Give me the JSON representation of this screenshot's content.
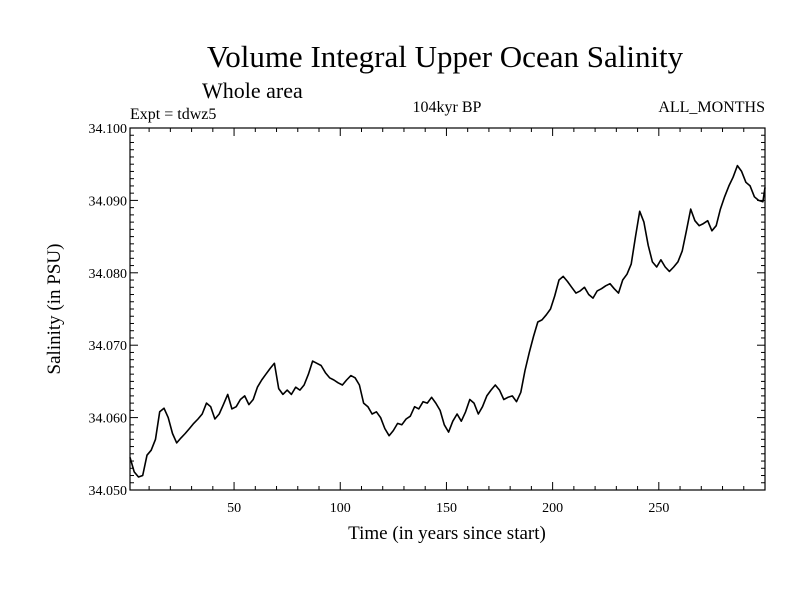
{
  "chart_data": {
    "type": "line",
    "title": "Volume Integral Upper Ocean Salinity",
    "subtitle": "Whole area",
    "header_left": "Expt = tdwz5",
    "header_center": "104kyr BP",
    "header_right": "ALL_MONTHS",
    "xlabel": "Time (in years since start)",
    "ylabel": "Salinity (in PSU)",
    "xlim": [
      1,
      300
    ],
    "ylim": [
      34.05,
      34.1
    ],
    "xticks": [
      50,
      100,
      150,
      200,
      250
    ],
    "xtick_labels": [
      "50",
      "100",
      "150",
      "200",
      "250"
    ],
    "yticks": [
      34.05,
      34.06,
      34.07,
      34.08,
      34.09,
      34.1
    ],
    "ytick_labels": [
      "34.050",
      "34.060",
      "34.070",
      "34.080",
      "34.090",
      "34.100"
    ],
    "grid": false,
    "series": [
      {
        "color": "#000000",
        "x": [
          1,
          3,
          5,
          7,
          9,
          11,
          13,
          15,
          17,
          19,
          21,
          23,
          25,
          27,
          29,
          31,
          33,
          35,
          37,
          39,
          41,
          43,
          45,
          47,
          49,
          51,
          53,
          55,
          57,
          59,
          61,
          63,
          65,
          67,
          69,
          71,
          73,
          75,
          77,
          79,
          81,
          83,
          85,
          87,
          89,
          91,
          93,
          95,
          97,
          99,
          101,
          103,
          105,
          107,
          109,
          111,
          113,
          115,
          117,
          119,
          121,
          123,
          125,
          127,
          129,
          131,
          133,
          135,
          137,
          139,
          141,
          143,
          145,
          147,
          149,
          151,
          153,
          155,
          157,
          159,
          161,
          163,
          165,
          167,
          169,
          171,
          173,
          175,
          177,
          179,
          181,
          183,
          185,
          187,
          189,
          191,
          193,
          195,
          197,
          199,
          201,
          203,
          205,
          207,
          209,
          211,
          213,
          215,
          217,
          219,
          221,
          223,
          225,
          227,
          229,
          231,
          233,
          235,
          237,
          239,
          241,
          243,
          245,
          247,
          249,
          251,
          253,
          255,
          257,
          259,
          261,
          263,
          265,
          267,
          269,
          271,
          273,
          275,
          277,
          279,
          281,
          283,
          285,
          287,
          289,
          291,
          293,
          295,
          297,
          299,
          300
        ],
        "values": [
          34.0545,
          34.0525,
          34.0518,
          34.052,
          34.0548,
          34.0555,
          34.057,
          34.0608,
          34.0613,
          34.06,
          34.0578,
          34.0565,
          34.0572,
          34.0578,
          34.0585,
          34.0592,
          34.0598,
          34.0605,
          34.062,
          34.0615,
          34.0598,
          34.0605,
          34.0618,
          34.0632,
          34.0612,
          34.0615,
          34.0625,
          34.063,
          34.0618,
          34.0625,
          34.0642,
          34.0652,
          34.066,
          34.0668,
          34.0675,
          34.064,
          34.0632,
          34.0638,
          34.0632,
          34.0642,
          34.0638,
          34.0645,
          34.066,
          34.0678,
          34.0675,
          34.0672,
          34.0662,
          34.0655,
          34.0652,
          34.0648,
          34.0645,
          34.0652,
          34.0658,
          34.0655,
          34.0645,
          34.062,
          34.0615,
          34.0605,
          34.0608,
          34.06,
          34.0585,
          34.0575,
          34.0582,
          34.0592,
          34.059,
          34.0598,
          34.0602,
          34.0615,
          34.0612,
          34.0622,
          34.062,
          34.0628,
          34.062,
          34.061,
          34.059,
          34.058,
          34.0595,
          34.0605,
          34.0595,
          34.0608,
          34.0625,
          34.062,
          34.0605,
          34.0615,
          34.063,
          34.0638,
          34.0645,
          34.0638,
          34.0625,
          34.0628,
          34.063,
          34.0622,
          34.0635,
          34.0665,
          34.069,
          34.0712,
          34.0732,
          34.0735,
          34.0742,
          34.075,
          34.0768,
          34.079,
          34.0795,
          34.0788,
          34.078,
          34.0772,
          34.0775,
          34.078,
          34.077,
          34.0765,
          34.0775,
          34.0778,
          34.0782,
          34.0785,
          34.0778,
          34.0772,
          34.079,
          34.0798,
          34.0812,
          34.085,
          34.0885,
          34.087,
          34.0838,
          34.0815,
          34.0808,
          34.0818,
          34.0808,
          34.0802,
          34.0808,
          34.0815,
          34.083,
          34.0858,
          34.0888,
          34.0872,
          34.0865,
          34.0868,
          34.0872,
          34.0858,
          34.0865,
          34.0888,
          34.0905,
          34.092,
          34.0932,
          34.0948,
          34.094,
          34.0925,
          34.092,
          34.0905,
          34.09,
          34.0898,
          34.0918
        ]
      }
    ]
  }
}
